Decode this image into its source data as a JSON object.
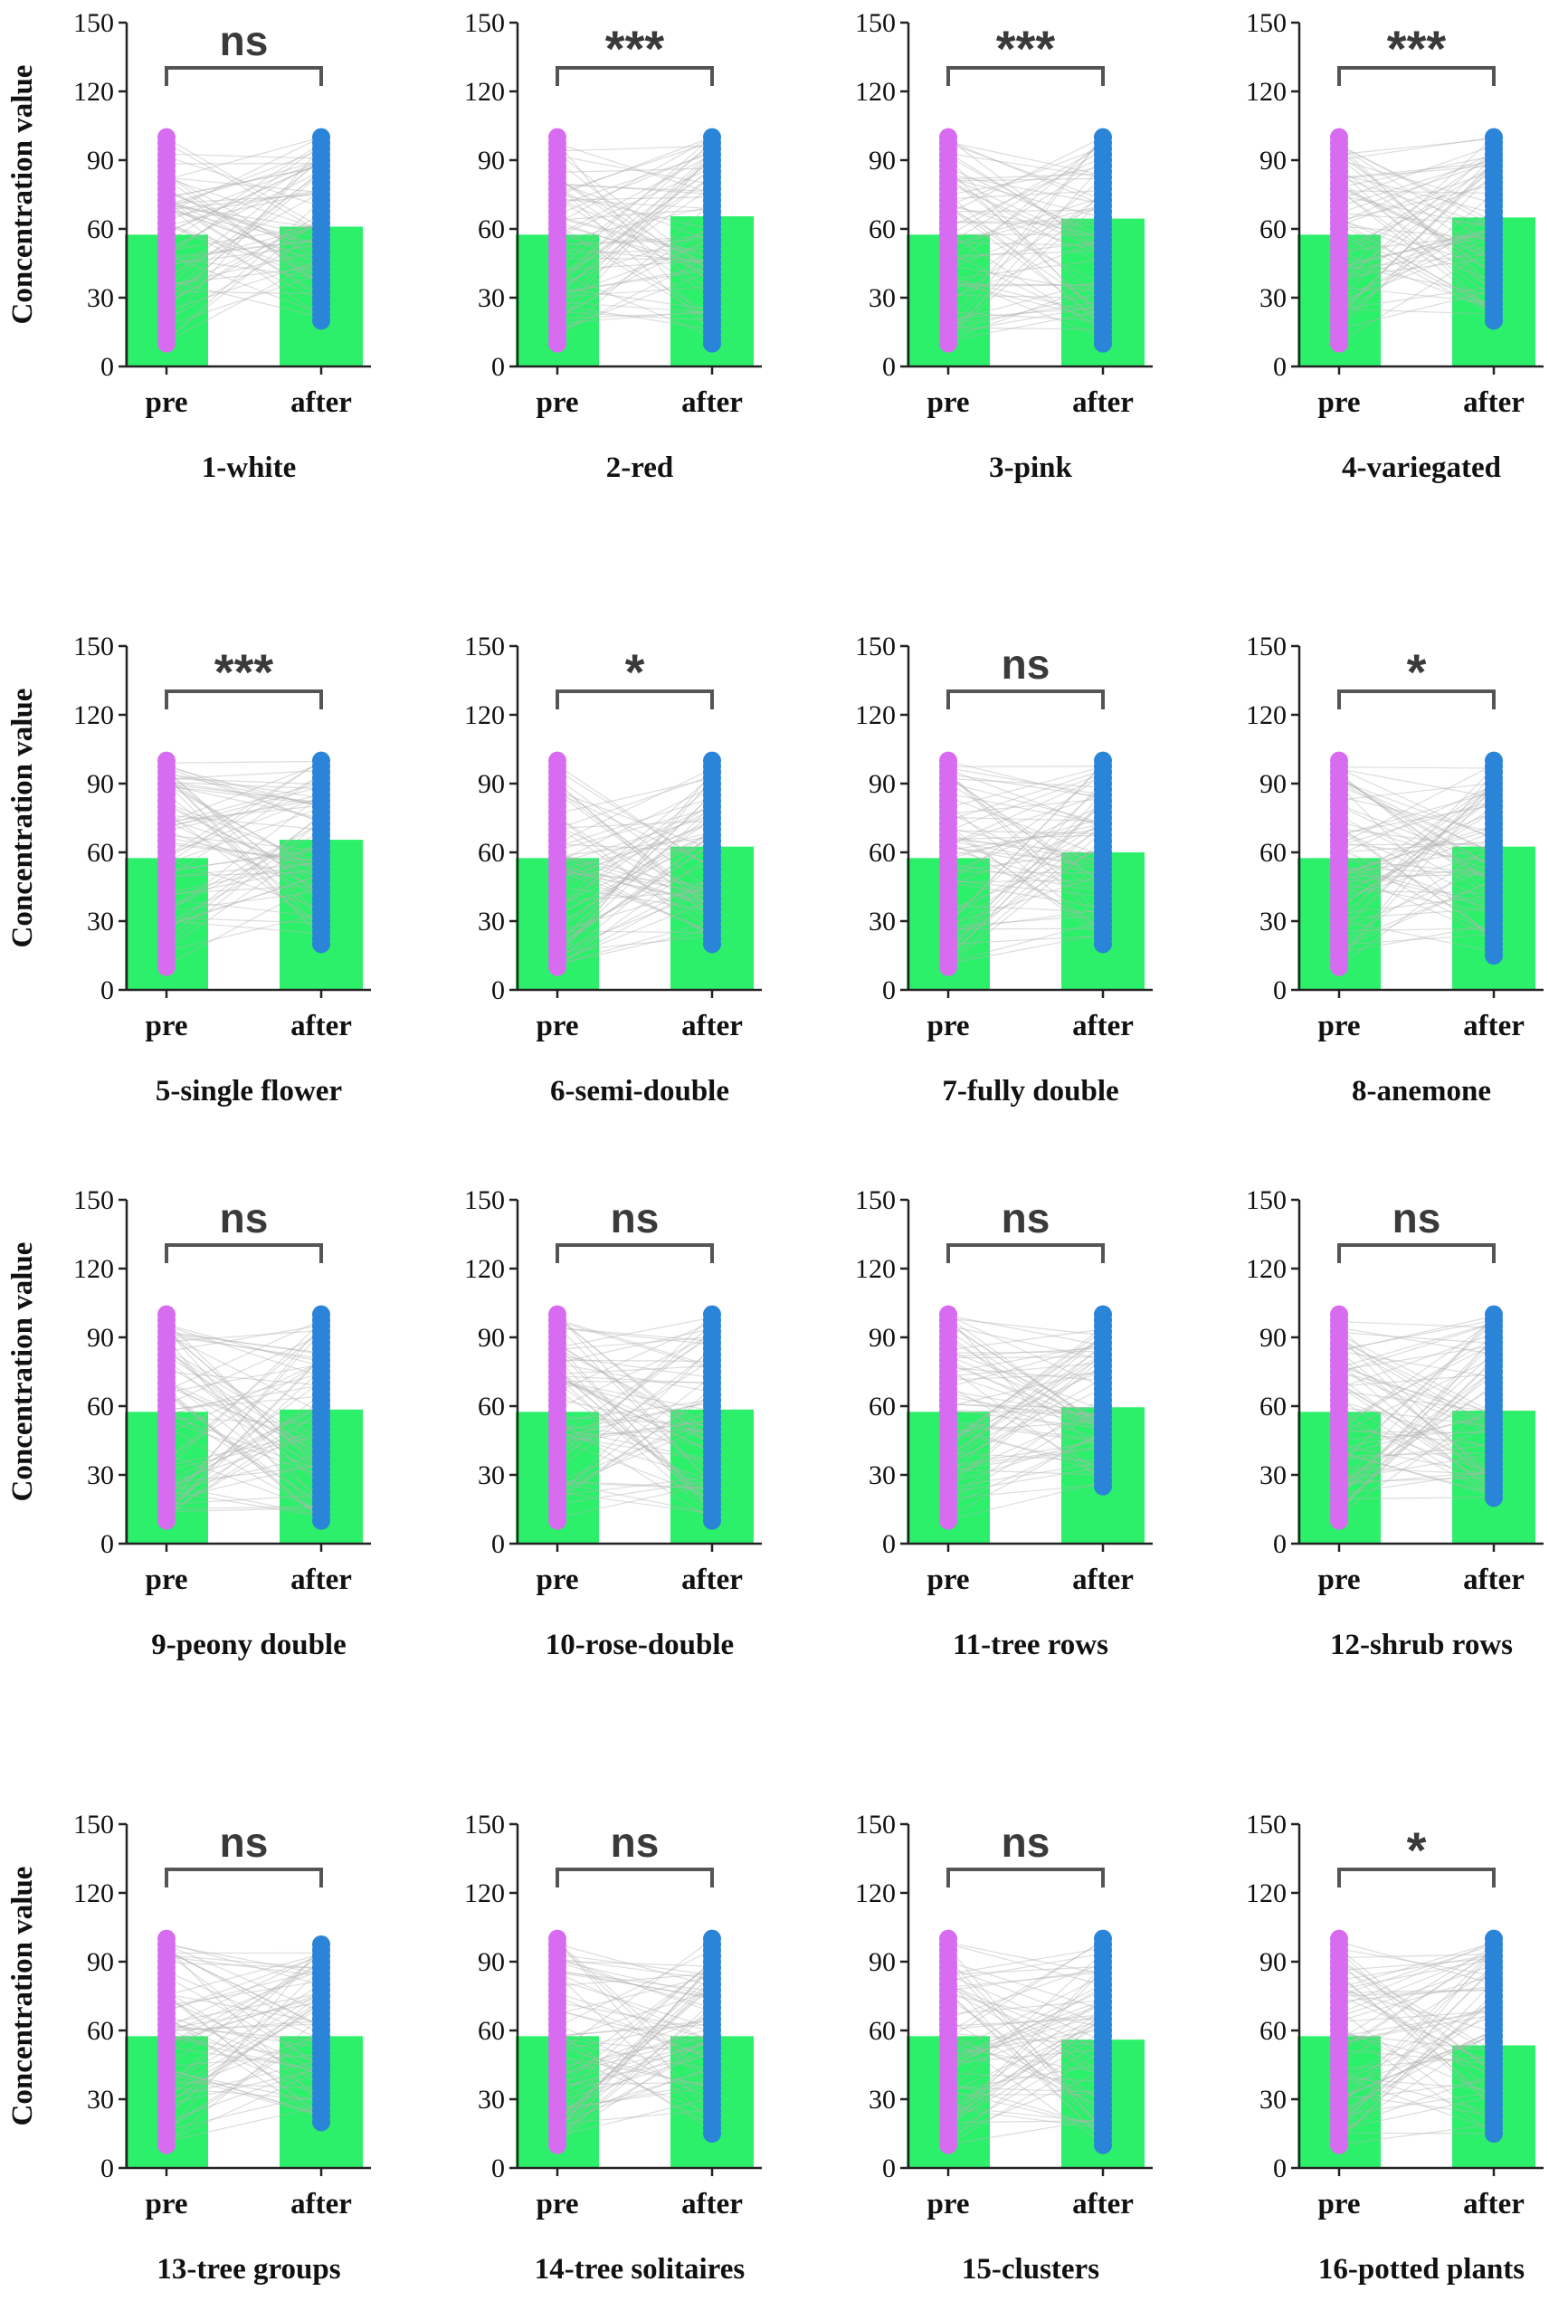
{
  "chart_data": {
    "type": "bar",
    "ylabel": "Concentration value",
    "ylim": [
      0,
      150
    ],
    "yticks": [
      0,
      30,
      60,
      90,
      120,
      150
    ],
    "categories": [
      "pre",
      "after"
    ],
    "series_colors": {
      "pre": "#d86cf0",
      "after": "#2a84d8",
      "bar": "#2cf06a",
      "lines": "#b4b4b4",
      "axis": "#222222",
      "bracket": "#555555"
    },
    "panels": [
      {
        "title": "1-white",
        "sig": "ns",
        "values": [
          57.5,
          61
        ],
        "pre_range": [
          10,
          100
        ],
        "after_range": [
          20,
          100
        ]
      },
      {
        "title": "2-red",
        "sig": "***",
        "values": [
          57.5,
          65.5
        ],
        "pre_range": [
          10,
          100
        ],
        "after_range": [
          10,
          100
        ]
      },
      {
        "title": "3-pink",
        "sig": "***",
        "values": [
          57.5,
          64.5
        ],
        "pre_range": [
          10,
          100
        ],
        "after_range": [
          10,
          100
        ]
      },
      {
        "title": "4-variegated",
        "sig": "***",
        "values": [
          57.5,
          65
        ],
        "pre_range": [
          10,
          100
        ],
        "after_range": [
          20,
          100
        ]
      },
      {
        "title": "5-single flower",
        "sig": "***",
        "values": [
          57.5,
          65.5
        ],
        "pre_range": [
          10,
          100
        ],
        "after_range": [
          20,
          100
        ]
      },
      {
        "title": "6-semi-double",
        "sig": "*",
        "values": [
          57.5,
          62.5
        ],
        "pre_range": [
          10,
          100
        ],
        "after_range": [
          20,
          100
        ]
      },
      {
        "title": "7-fully double",
        "sig": "ns",
        "values": [
          57.5,
          60
        ],
        "pre_range": [
          10,
          100
        ],
        "after_range": [
          20,
          100
        ]
      },
      {
        "title": "8-anemone",
        "sig": "*",
        "values": [
          57.5,
          62.5
        ],
        "pre_range": [
          10,
          100
        ],
        "after_range": [
          15,
          100
        ]
      },
      {
        "title": "9-peony double",
        "sig": "ns",
        "values": [
          57.5,
          58.5
        ],
        "pre_range": [
          10,
          100
        ],
        "after_range": [
          10,
          100
        ]
      },
      {
        "title": "10-rose-double",
        "sig": "ns",
        "values": [
          57.5,
          58.5
        ],
        "pre_range": [
          10,
          100
        ],
        "after_range": [
          10,
          100
        ]
      },
      {
        "title": "11-tree rows",
        "sig": "ns",
        "values": [
          57.5,
          59.5
        ],
        "pre_range": [
          10,
          100
        ],
        "after_range": [
          25,
          100
        ]
      },
      {
        "title": "12-shrub rows",
        "sig": "ns",
        "values": [
          57.5,
          58
        ],
        "pre_range": [
          10,
          100
        ],
        "after_range": [
          20,
          100
        ]
      },
      {
        "title": "13-tree groups",
        "sig": "ns",
        "values": [
          57.5,
          57.5
        ],
        "pre_range": [
          10,
          100
        ],
        "after_range": [
          20,
          98
        ]
      },
      {
        "title": "14-tree solitaires",
        "sig": "ns",
        "values": [
          57.5,
          57.5
        ],
        "pre_range": [
          10,
          100
        ],
        "after_range": [
          15,
          100
        ]
      },
      {
        "title": "15-clusters",
        "sig": "ns",
        "values": [
          57.5,
          56
        ],
        "pre_range": [
          10,
          100
        ],
        "after_range": [
          10,
          100
        ]
      },
      {
        "title": "16-potted plants",
        "sig": "*",
        "values": [
          57.5,
          53.5
        ],
        "pre_range": [
          10,
          100
        ],
        "after_range": [
          15,
          100
        ]
      }
    ]
  }
}
